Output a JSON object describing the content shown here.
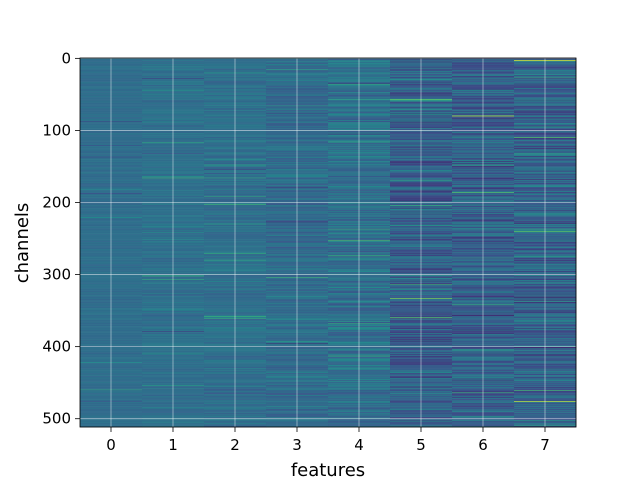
{
  "chart_data": {
    "type": "heatmap",
    "title": "",
    "xlabel": "features",
    "ylabel": "channels",
    "x_categories": [
      "0",
      "1",
      "2",
      "3",
      "4",
      "5",
      "6",
      "7"
    ],
    "x_tick_labels": [
      "0",
      "1",
      "2",
      "3",
      "4",
      "5",
      "6",
      "7"
    ],
    "y_tick_values": [
      0,
      100,
      200,
      300,
      400,
      500
    ],
    "y_tick_labels": [
      "0",
      "100",
      "200",
      "300",
      "400",
      "500"
    ],
    "ylim": [
      511.5,
      -0.5
    ],
    "xlim": [
      -0.5,
      7.5
    ],
    "n_channels": 512,
    "n_features": 8,
    "grid": true,
    "colormap": "viridis",
    "colormap_stops": [
      "#440154",
      "#3b528b",
      "#21908d",
      "#5dc963",
      "#fde725"
    ],
    "feature_stats": [
      {
        "feature": 0,
        "mean": 0.36,
        "spread": 0.03
      },
      {
        "feature": 1,
        "mean": 0.37,
        "spread": 0.045
      },
      {
        "feature": 2,
        "mean": 0.37,
        "spread": 0.06
      },
      {
        "feature": 3,
        "mean": 0.35,
        "spread": 0.08
      },
      {
        "feature": 4,
        "mean": 0.37,
        "spread": 0.1
      },
      {
        "feature": 5,
        "mean": 0.3,
        "spread": 0.14
      },
      {
        "feature": 6,
        "mean": 0.31,
        "spread": 0.13
      },
      {
        "feature": 7,
        "mean": 0.31,
        "spread": 0.14
      }
    ],
    "highlighted_cells": [
      {
        "feature": 5,
        "channel": 57,
        "value": 0.75
      },
      {
        "feature": 5,
        "channel": 333,
        "value": 0.8
      },
      {
        "feature": 5,
        "channel": 360,
        "value": 0.75
      },
      {
        "feature": 6,
        "channel": 80,
        "value": 0.9
      },
      {
        "feature": 6,
        "channel": 186,
        "value": 0.7
      },
      {
        "feature": 7,
        "channel": 3,
        "value": 0.95
      },
      {
        "feature": 7,
        "channel": 110,
        "value": 0.7
      },
      {
        "feature": 7,
        "channel": 240,
        "value": 0.75
      },
      {
        "feature": 7,
        "channel": 476,
        "value": 0.9
      },
      {
        "feature": 3,
        "channel": 304,
        "value": 0.6
      },
      {
        "feature": 4,
        "channel": 413,
        "value": 0.6
      }
    ]
  }
}
